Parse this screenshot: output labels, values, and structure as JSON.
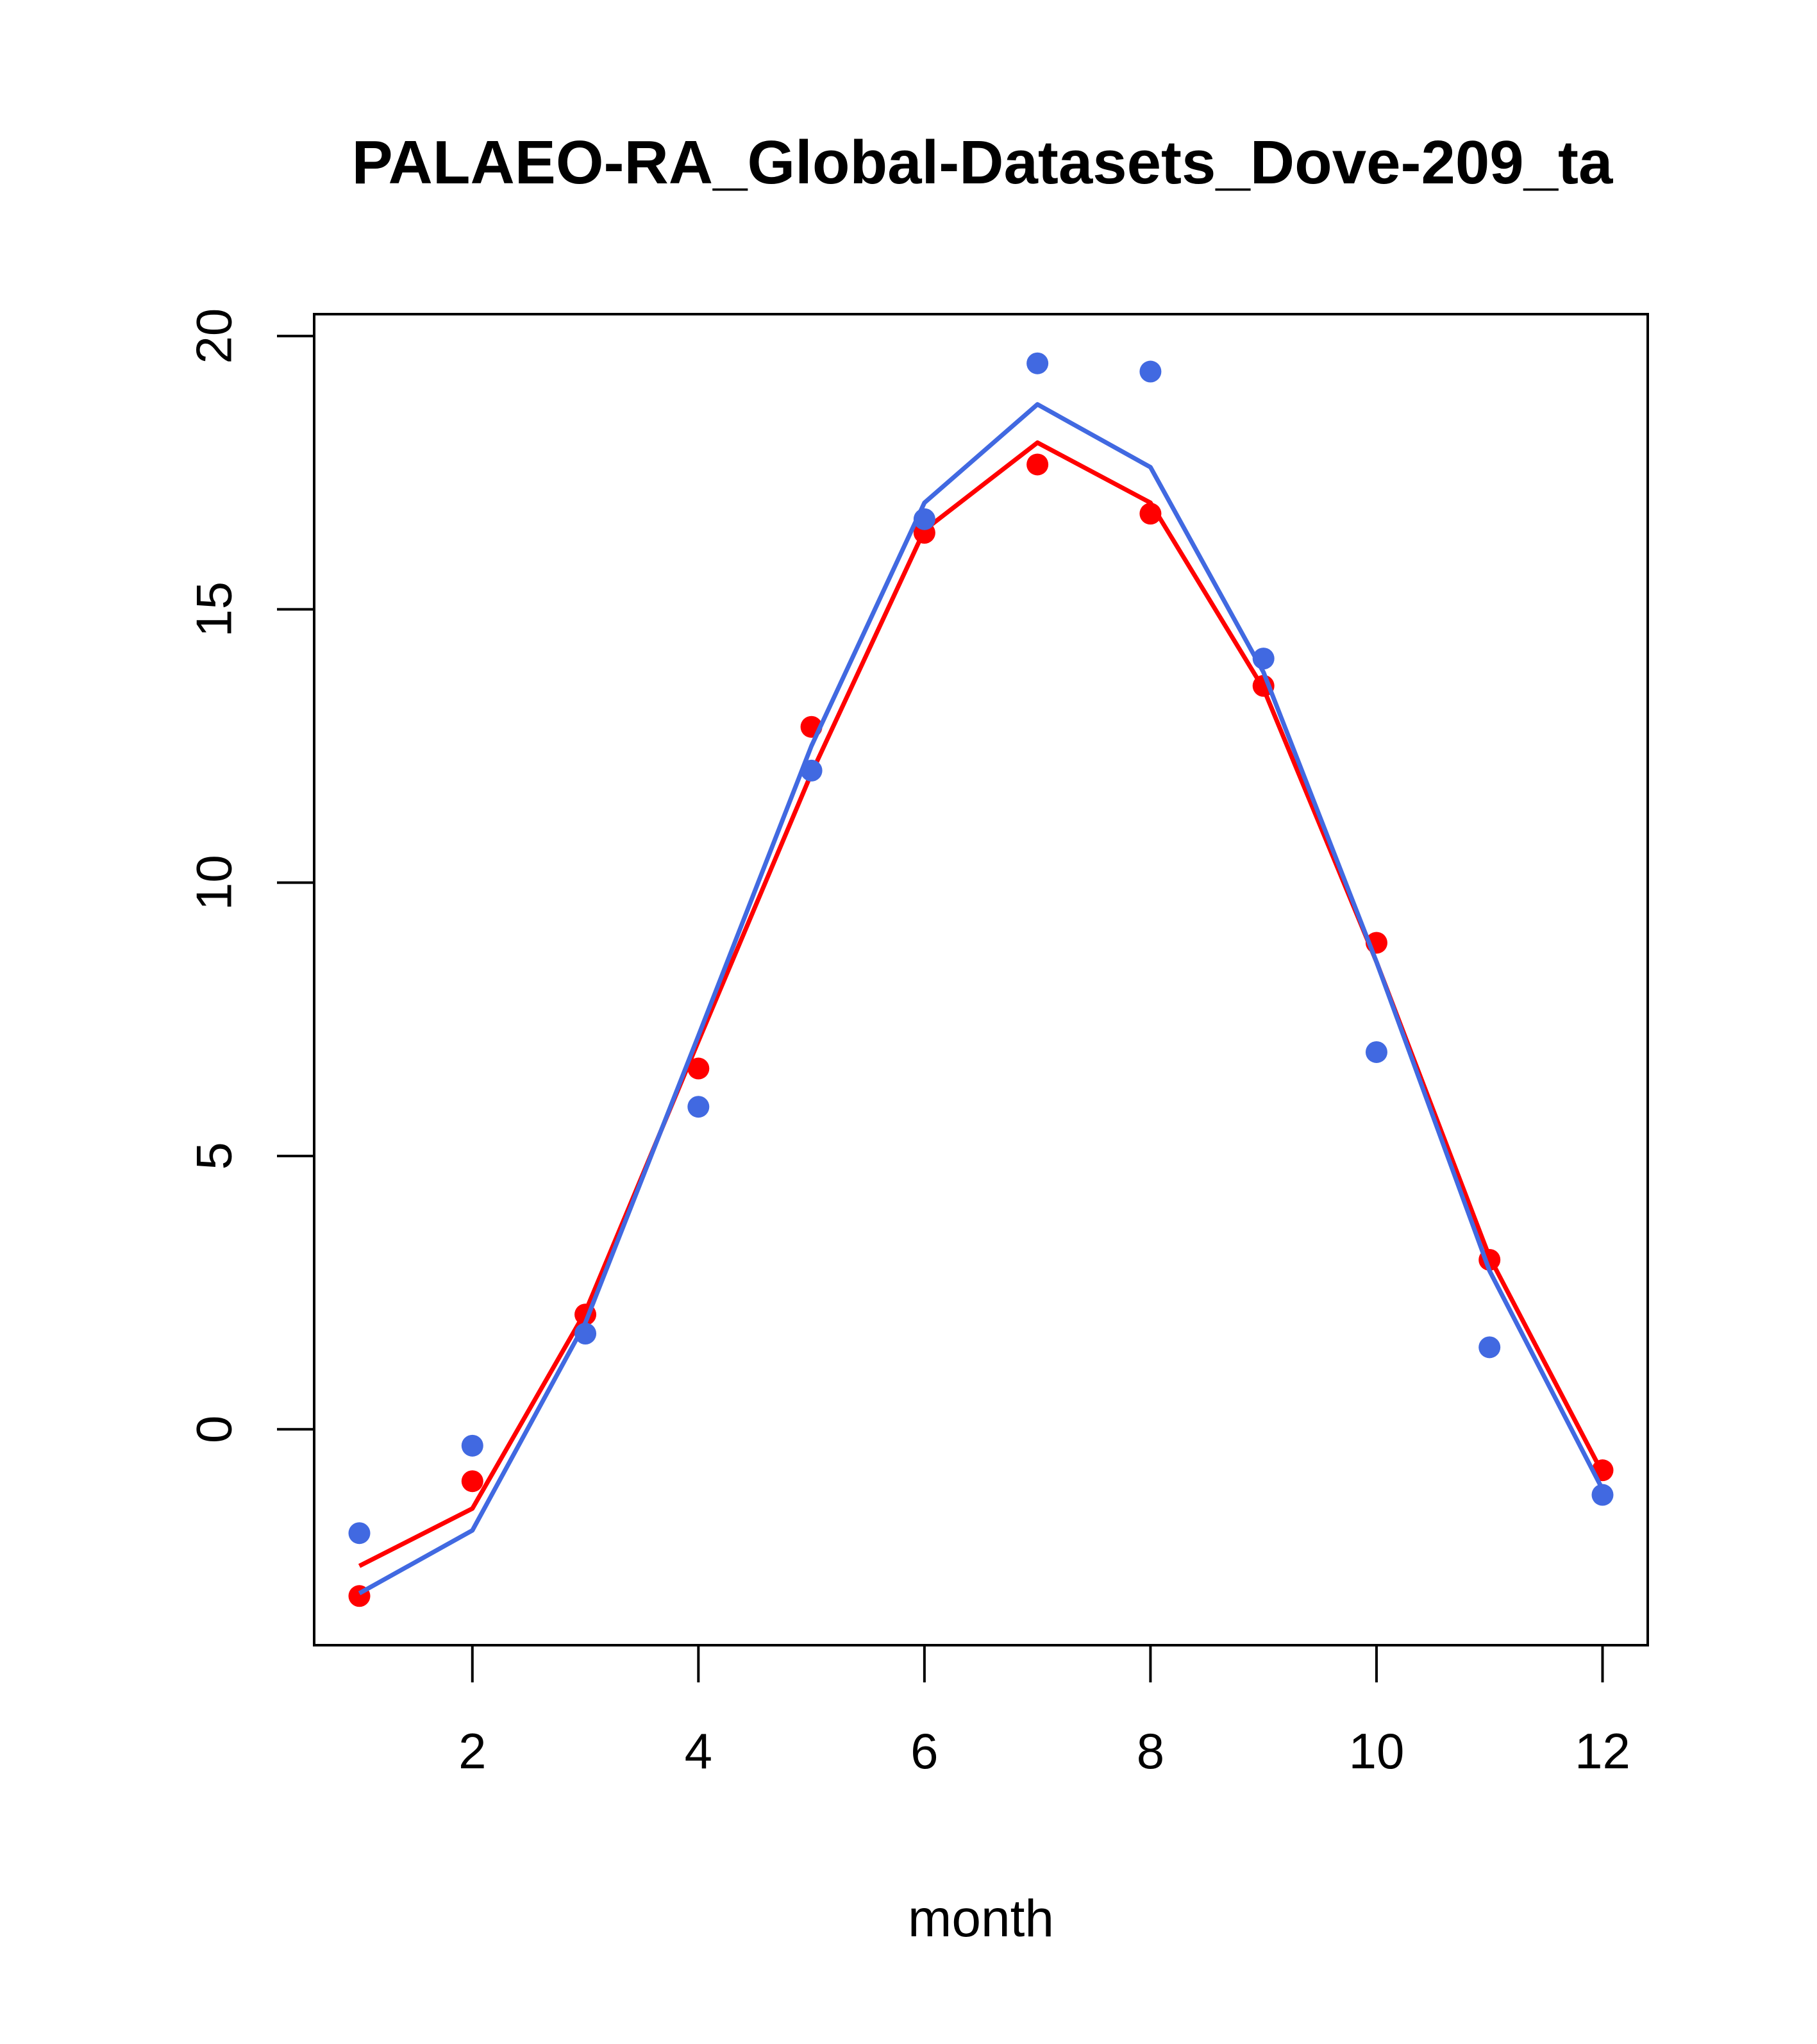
{
  "chart_data": {
    "type": "line",
    "title": "PALAEO-RA_Global-Datasets_Dove-209_ta",
    "xlabel": "month",
    "ylabel": "",
    "xlim": [
      0.6,
      12.4
    ],
    "ylim": [
      -3.95,
      20.4
    ],
    "x_ticks": [
      2,
      4,
      6,
      8,
      10,
      12
    ],
    "y_ticks": [
      0,
      5,
      10,
      15,
      20
    ],
    "grid": false,
    "legend": "none",
    "x": [
      1,
      2,
      3,
      4,
      5,
      6,
      7,
      8,
      9,
      10,
      11,
      12
    ],
    "series": [
      {
        "color": "#ff0000",
        "kind": "line",
        "values": [
          -2.5,
          -1.45,
          2.15,
          7.1,
          12.0,
          16.45,
          18.05,
          16.95,
          13.55,
          8.55,
          3.15,
          -0.8
        ]
      },
      {
        "color": "#ff0000",
        "kind": "points",
        "values": [
          -3.05,
          -0.95,
          2.1,
          6.6,
          12.85,
          16.4,
          17.65,
          16.75,
          13.6,
          8.9,
          3.1,
          -0.75
        ]
      },
      {
        "color": "#4169e1",
        "kind": "line",
        "values": [
          -3.0,
          -1.85,
          1.95,
          7.2,
          12.5,
          16.95,
          18.75,
          17.6,
          13.85,
          8.55,
          2.9,
          -1.1
        ]
      },
      {
        "color": "#4169e1",
        "kind": "points",
        "values": [
          -1.9,
          -0.3,
          1.75,
          5.9,
          12.05,
          16.65,
          19.5,
          19.35,
          14.1,
          6.9,
          1.5,
          -1.2
        ]
      }
    ]
  }
}
